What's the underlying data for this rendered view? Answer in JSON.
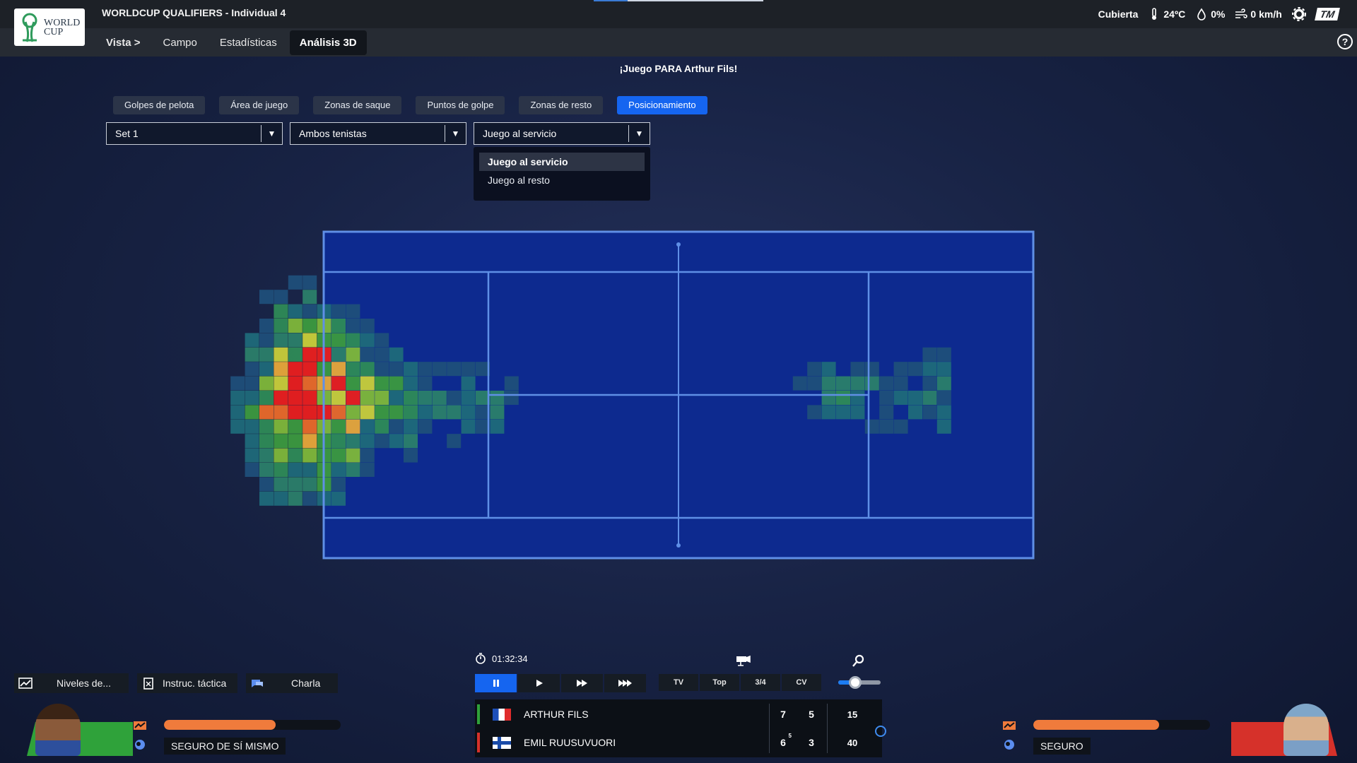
{
  "app": {
    "title": "WORLDCUP QUALIFIERS - Individual 4",
    "logo_text": [
      "WORLD",
      "CUP"
    ]
  },
  "weather": {
    "surface": "Cubierta",
    "temperature": "24ºC",
    "rain": "0%",
    "wind": "0 km/h",
    "icons": [
      "thermometer-icon",
      "rain-drop-icon",
      "wind-icon",
      "gear-icon"
    ],
    "brand": "TM"
  },
  "nav": {
    "vista": "Vista >",
    "items": [
      "Campo",
      "Estadísticas",
      "Análisis 3D"
    ],
    "active": "Análisis 3D",
    "help": "?"
  },
  "analysis": {
    "heading": "¡Juego PARA Arthur Fils!",
    "tabs": [
      "Golpes de pelota",
      "Área de juego",
      "Zonas de saque",
      "Puntos de golpe",
      "Zonas de resto",
      "Posicionamiento"
    ],
    "active_tab": "Posicionamiento",
    "selects": [
      {
        "value": "Set 1"
      },
      {
        "value": "Ambos tenistas"
      },
      {
        "value": "Juego al servicio"
      }
    ],
    "dropdown_options": [
      "Juego al servicio",
      "Juego al resto"
    ],
    "dropdown_selected": "Juego al servicio"
  },
  "heatmap": {
    "colors": {
      "court": "#0d2a8f",
      "court_line": "#5f8fe6",
      "low": "#1f5f7a",
      "mid": "#2e8b57",
      "high": "#e8d43a",
      "peak": "#ea1f1f"
    },
    "legend_levels": [
      "low",
      "mid",
      "high",
      "peak"
    ]
  },
  "bottom": {
    "tactic_buttons": [
      {
        "label": "Niveles de...",
        "icon": "chart-icon"
      },
      {
        "label": "Instruc. táctica",
        "icon": "clipboard-icon"
      },
      {
        "label": "Charla",
        "icon": "chat-icon"
      }
    ],
    "left_player": {
      "mood": "SEGURO DE SÍ MISMO",
      "energy": 0.63,
      "bg": "#2fa23a"
    },
    "right_player": {
      "mood": "SEGURO",
      "energy": 0.71,
      "bg": "#d6312a"
    },
    "timer": "01:32:34",
    "camera_buttons": [
      "TV",
      "Top",
      "3/4",
      "CV"
    ],
    "zoom_level": 0.4
  },
  "scoreboard": {
    "players": [
      {
        "name": "ARTHUR FILS",
        "flag": "france",
        "bar": "#2fa23a",
        "sets": [
          "7",
          "5"
        ],
        "tiebreak": "",
        "points": "15"
      },
      {
        "name": "EMIL RUUSUVUORI",
        "flag": "finland",
        "bar": "#d6312a",
        "sets": [
          "6",
          "3"
        ],
        "tiebreak": "5",
        "points": "40"
      }
    ]
  }
}
